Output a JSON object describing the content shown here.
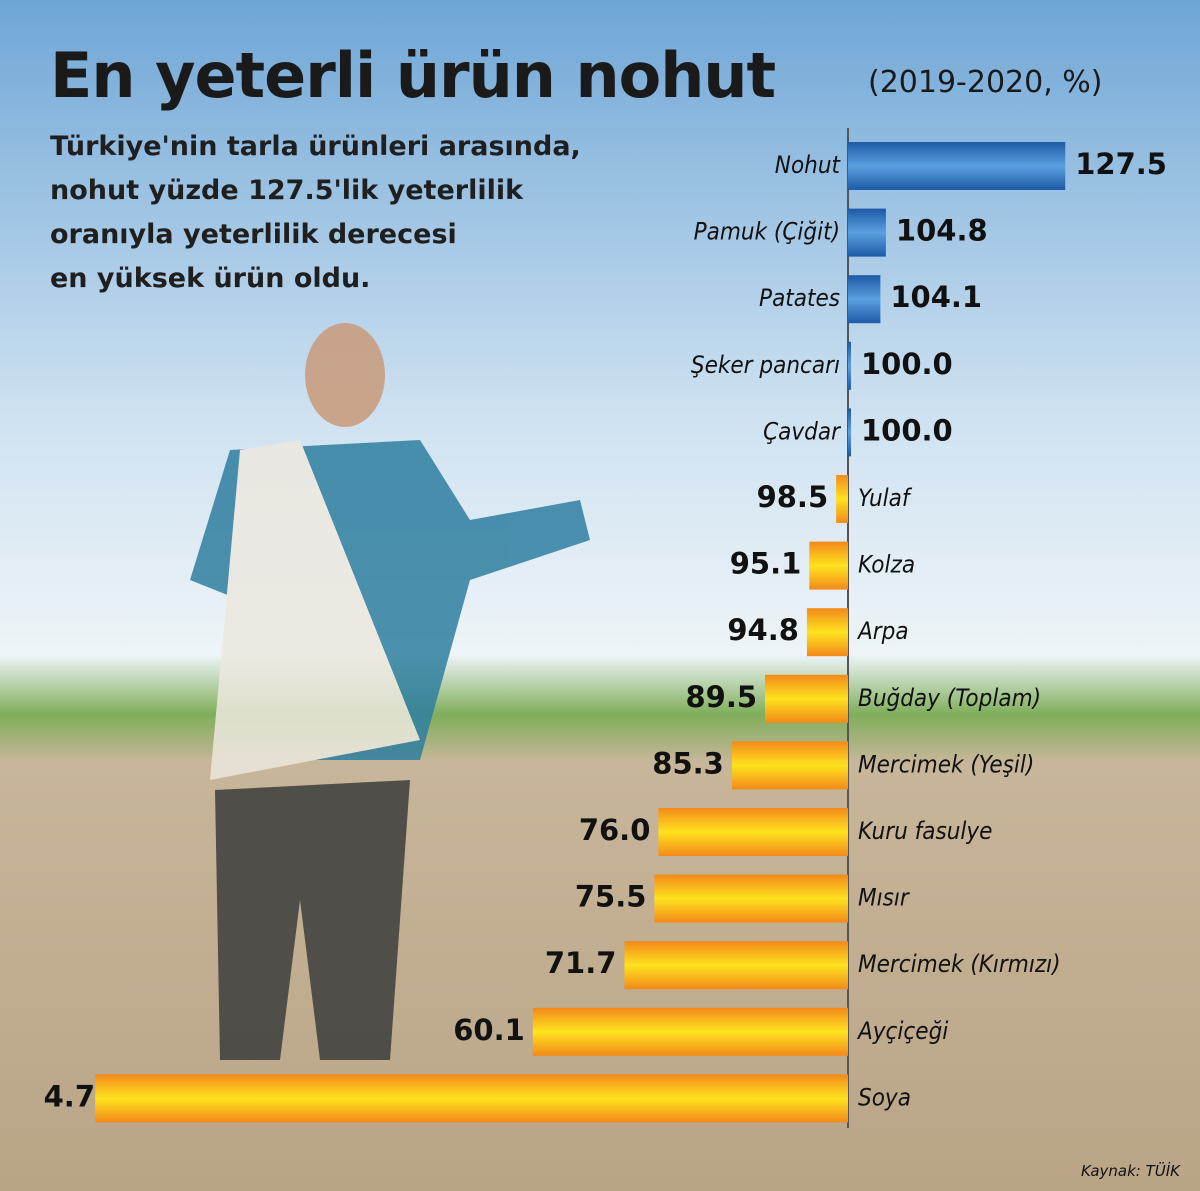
{
  "title": "En yeterli ürün nohut",
  "description": [
    "Türkiye'nin tarla ürünleri arasında,",
    "nohut yüzde 127.5'lik yeterlilik",
    "oranıyla yeterlilik derecesi",
    "en yüksek ürün oldu."
  ],
  "source": "Kaynak: TÜİK",
  "chart_data": {
    "type": "bar",
    "orientation": "horizontal",
    "subtitle": "(2019-2020, %)",
    "categories": [
      "Nohut",
      "Pamuk (Çiğit)",
      "Patates",
      "Şeker pancarı",
      "Çavdar",
      "Yulaf",
      "Kolza",
      "Arpa",
      "Buğday (Toplam)",
      "Mercimek (Yeşil)",
      "Kuru fasulye",
      "Mısır",
      "Mercimek (Kırmızı)",
      "Ayçiçeği",
      "Soya"
    ],
    "values": [
      127.5,
      104.8,
      104.1,
      100.0,
      100.0,
      98.5,
      95.1,
      94.8,
      89.5,
      85.3,
      76.0,
      75.5,
      71.7,
      60.1,
      4.7
    ],
    "value_labels": [
      "127.5",
      "104.8",
      "104.1",
      "100.0",
      "100.0",
      "98.5",
      "95.1",
      "94.8",
      "89.5",
      "85.3",
      "76.0",
      "75.5",
      "71.7",
      "60.1",
      "4.7"
    ],
    "xlim": [
      0,
      140
    ],
    "baseline": 100,
    "color_above": "#1d5aa6",
    "color_below": "#f28a1a"
  }
}
